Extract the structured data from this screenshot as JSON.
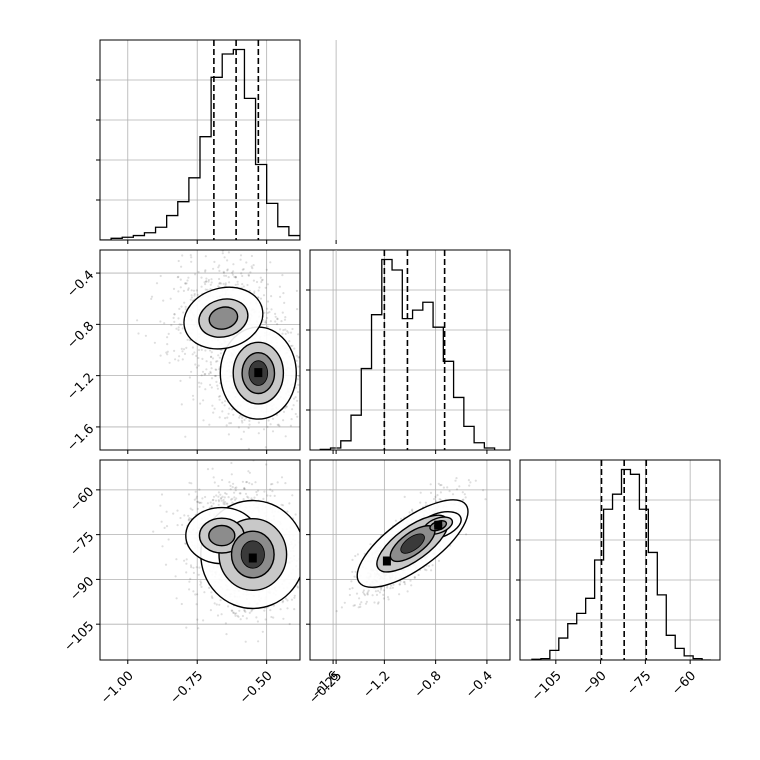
{
  "chart_data": {
    "type": "corner",
    "title": "",
    "parameters": [
      {
        "xlim": [
          -1.1,
          -0.38
        ],
        "ticks": [
          -1.0,
          -0.75,
          -0.5,
          -0.25
        ],
        "tick_labels": [
          "−1.00",
          "−0.75",
          "−0.50",
          "−0.25"
        ],
        "quantiles": [
          -0.69,
          -0.61,
          -0.53
        ],
        "histogram": {
          "bin_edges": [
            -1.1,
            -1.06,
            -1.02,
            -0.98,
            -0.94,
            -0.9,
            -0.86,
            -0.82,
            -0.78,
            -0.74,
            -0.7,
            -0.66,
            -0.62,
            -0.58,
            -0.54,
            -0.5,
            -0.46,
            -0.42,
            -0.38
          ],
          "counts": [
            0.0,
            0.3,
            0.5,
            0.8,
            1.3,
            2.3,
            4.4,
            6.9,
            11.2,
            18.6,
            29.3,
            33.5,
            34.3,
            25.5,
            13.6,
            6.6,
            2.4,
            0.8
          ]
        }
      },
      {
        "xlim": [
          -1.78,
          -0.22
        ],
        "ticks": [
          -1.6,
          -1.2,
          -0.8,
          -0.4
        ],
        "tick_labels": [
          "−1.6",
          "−1.2",
          "−0.8",
          "−0.4"
        ],
        "quantiles": [
          -1.2,
          -1.02,
          -0.73
        ],
        "histogram": {
          "bin_edges": [
            -1.7,
            -1.62,
            -1.54,
            -1.46,
            -1.38,
            -1.3,
            -1.22,
            -1.14,
            -1.06,
            -0.98,
            -0.9,
            -0.82,
            -0.74,
            -0.66,
            -0.58,
            -0.5,
            -0.42,
            -0.34
          ],
          "counts": [
            0.1,
            0.3,
            1.4,
            5.3,
            12.4,
            20.6,
            29.0,
            27.4,
            20.0,
            21.3,
            22.5,
            18.7,
            13.5,
            8.0,
            3.6,
            1.1,
            0.3
          ]
        }
      },
      {
        "xlim": [
          -117,
          -50
        ],
        "ticks": [
          -105,
          -90,
          -75,
          -60
        ],
        "tick_labels": [
          "−105",
          "−90",
          "−75",
          "−60"
        ],
        "quantiles": [
          -89.7,
          -82.1,
          -74.7
        ],
        "histogram": {
          "bin_edges": [
            -113,
            -110,
            -107,
            -104,
            -101,
            -98,
            -95,
            -92,
            -89,
            -86,
            -83,
            -80,
            -77,
            -74,
            -71,
            -68,
            -65,
            -62,
            -59,
            -56,
            -53
          ],
          "counts": [
            0.1,
            0.2,
            1.4,
            3.2,
            5.3,
            6.8,
            9.0,
            14.6,
            22.0,
            24.2,
            27.8,
            27.1,
            22.0,
            15.7,
            9.5,
            3.6,
            1.7,
            0.6,
            0.2,
            0.0
          ]
        }
      }
    ],
    "pairs": [
      {
        "x_param": 0,
        "y_param": 1,
        "peaks": [
          {
            "x": -0.53,
            "y": -1.18,
            "weight": 0.55
          },
          {
            "x": -0.67,
            "y": -0.72,
            "weight": 0.45
          }
        ]
      },
      {
        "x_param": 0,
        "y_param": 2,
        "peaks": [
          {
            "x": -0.55,
            "y": -83,
            "weight": 0.65
          },
          {
            "x": -0.64,
            "y": -74,
            "weight": 0.35
          }
        ]
      },
      {
        "x_param": 1,
        "y_param": 2,
        "peaks": [
          {
            "x": -1.18,
            "y": -84,
            "weight": 0.55
          },
          {
            "x": -0.78,
            "y": -72,
            "weight": 0.45
          }
        ]
      }
    ]
  }
}
